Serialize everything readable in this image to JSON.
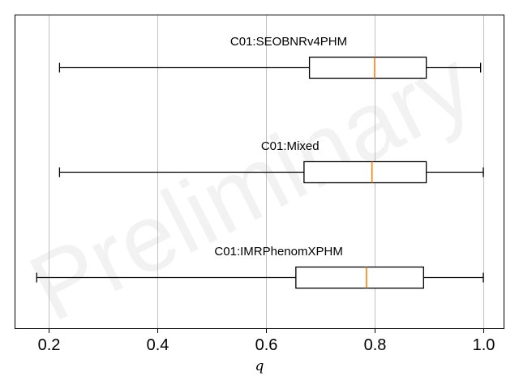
{
  "chart_data": {
    "type": "boxplot",
    "orientation": "horizontal",
    "title": "",
    "xlabel": "q",
    "ylabel": "",
    "xlim": [
      0.14,
      1.04
    ],
    "xticks": [
      0.2,
      0.4,
      0.6,
      0.8,
      1.0
    ],
    "xtick_labels": [
      "0.2",
      "0.4",
      "0.6",
      "0.8",
      "1.0"
    ],
    "grid": "vertical",
    "watermark": "Preliminary",
    "colors": {
      "box": "#000000",
      "median": "#ff7f0e",
      "grid": "#b0b0b0"
    },
    "series": [
      {
        "name": "C01:SEOBNRv4PHM",
        "whisker_low": 0.22,
        "q1": 0.68,
        "median": 0.8,
        "q3": 0.895,
        "whisker_high": 0.995
      },
      {
        "name": "C01:Mixed",
        "whisker_low": 0.22,
        "q1": 0.67,
        "median": 0.795,
        "q3": 0.895,
        "whisker_high": 1.0
      },
      {
        "name": "C01:IMRPhenomXPHM",
        "whisker_low": 0.178,
        "q1": 0.655,
        "median": 0.785,
        "q3": 0.89,
        "whisker_high": 1.0
      }
    ]
  }
}
